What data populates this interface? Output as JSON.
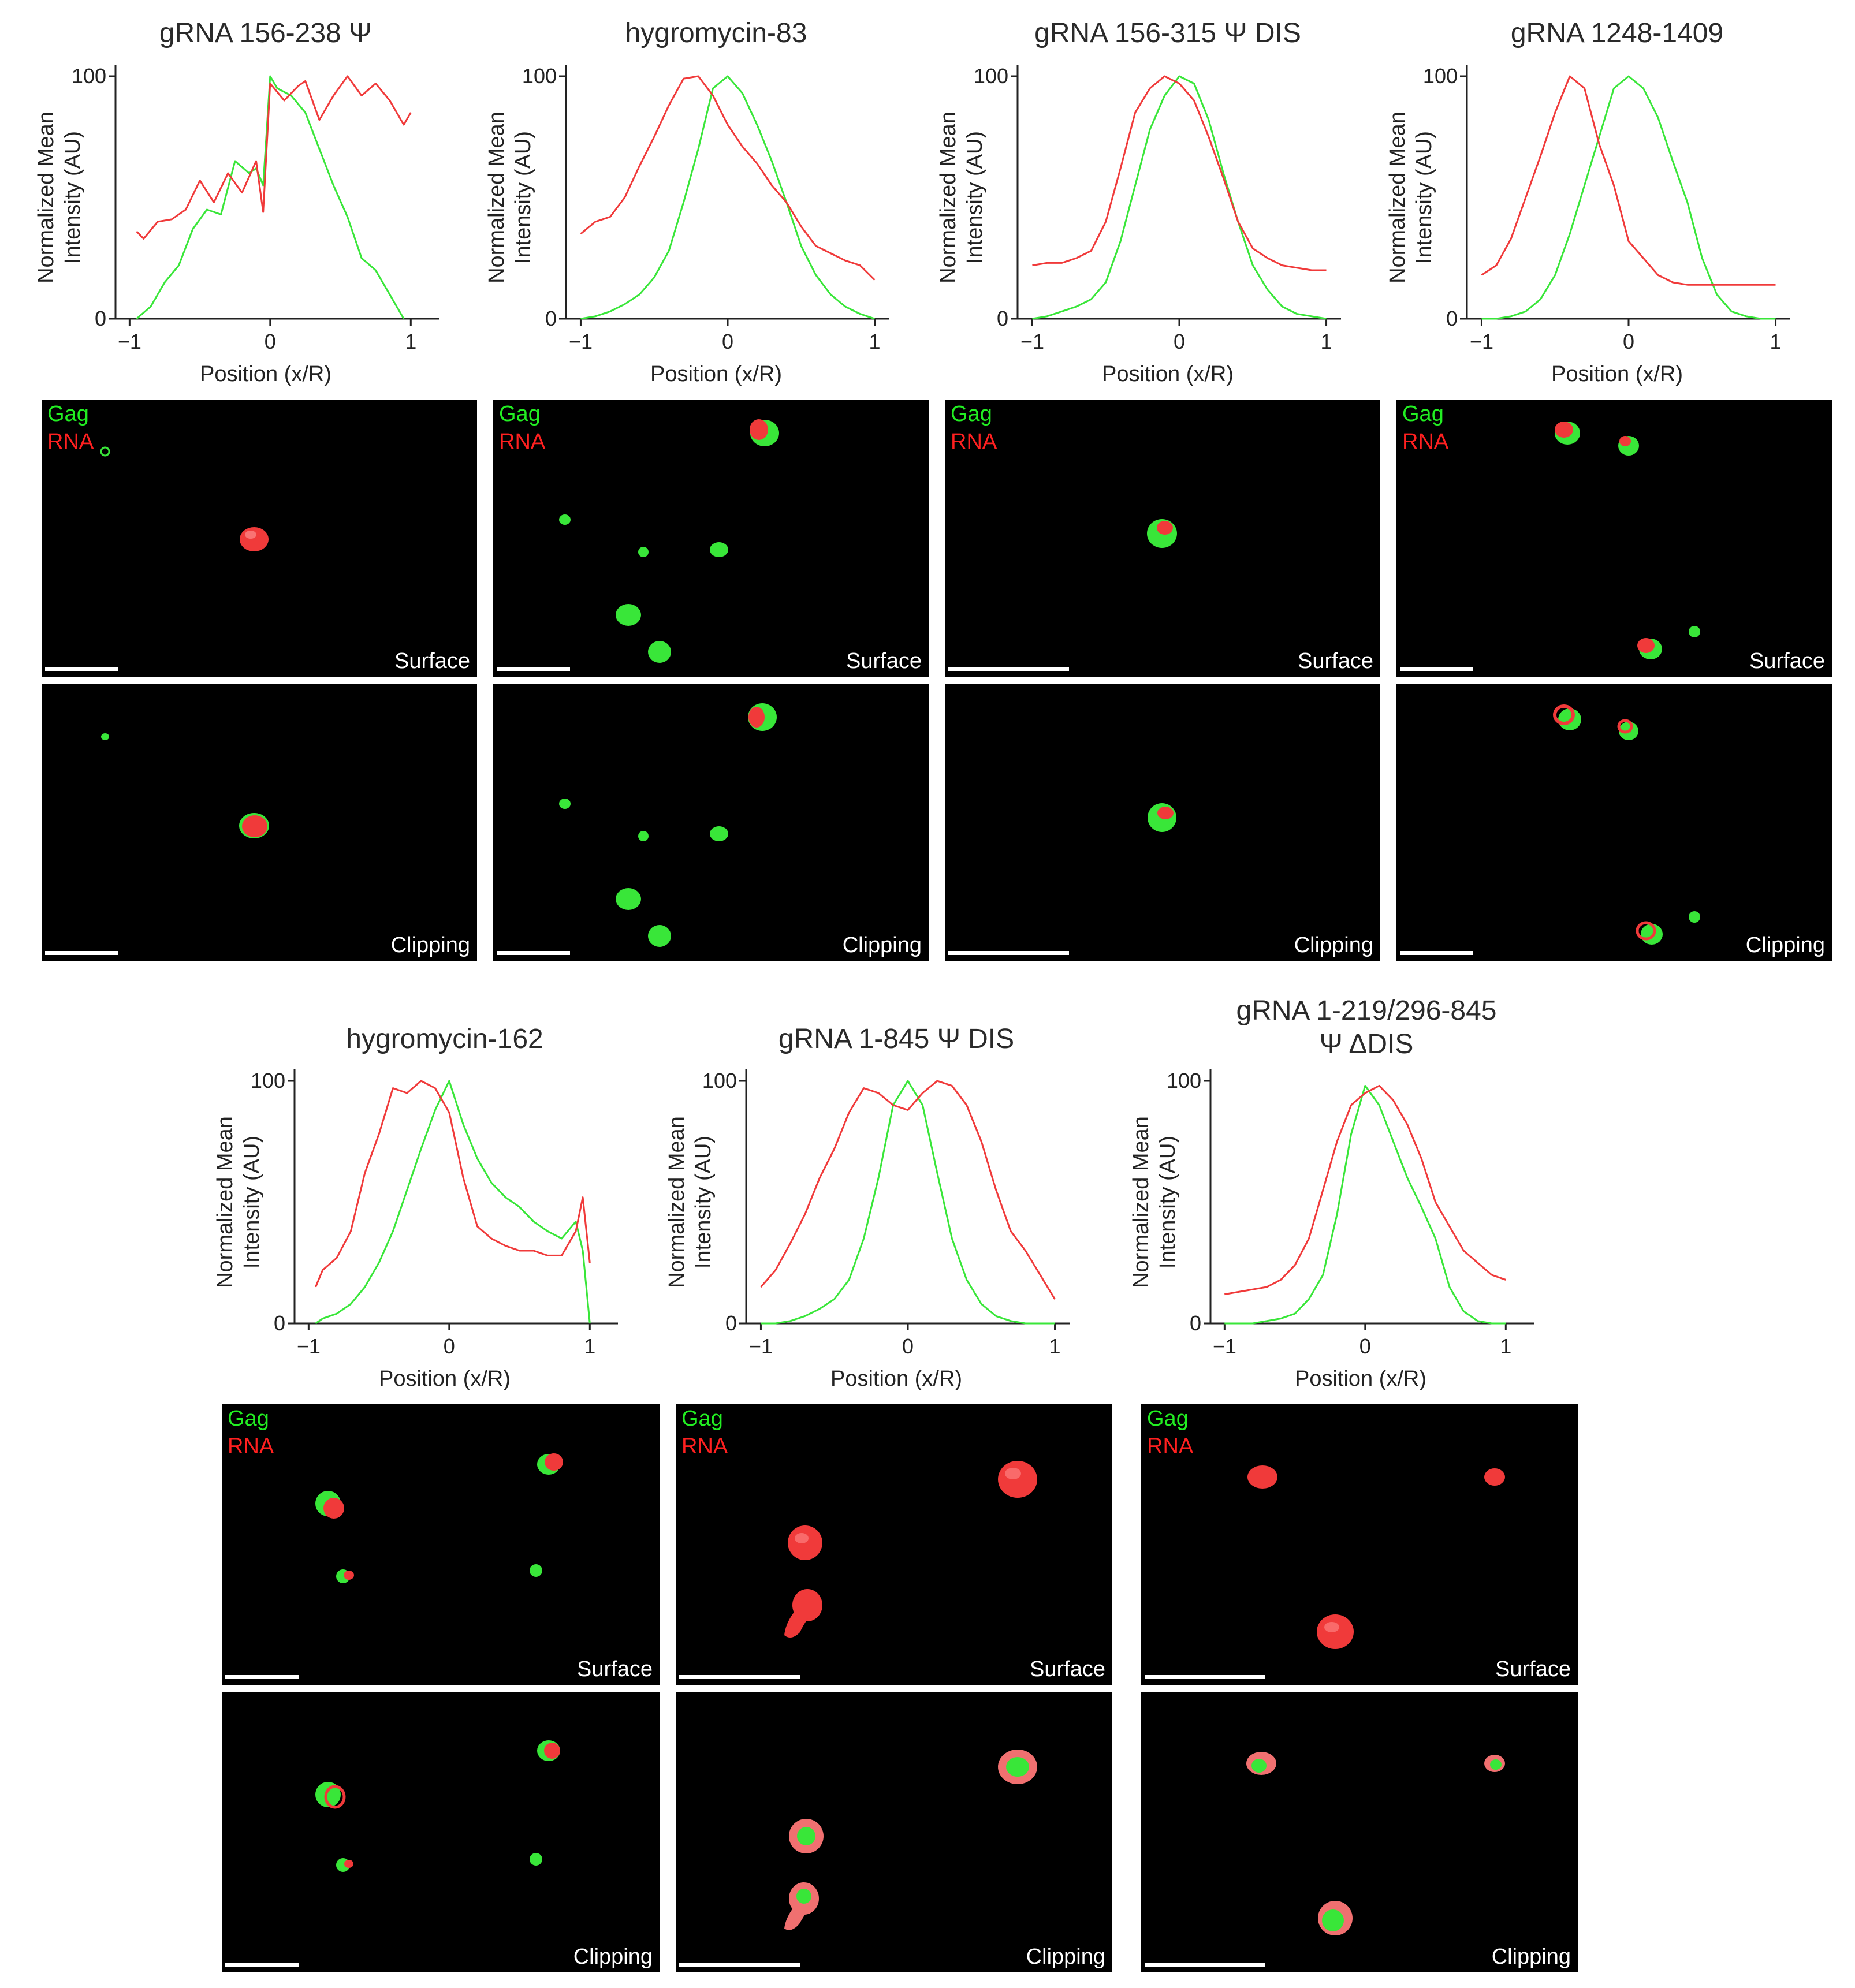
{
  "colors": {
    "gag": "#39e639",
    "rna": "#f03a3a",
    "background": "#000000",
    "axis": "#222222"
  },
  "common": {
    "ylabel_line1": "Normalized Mean",
    "ylabel_line2": "Intensity (AU)",
    "xlabel": "Position (x/R)",
    "yticks": [
      0,
      100
    ],
    "xticks": [
      -1,
      0,
      1
    ],
    "gag_label": "Gag",
    "rna_label": "RNA",
    "surface_label": "Surface",
    "clipping_label": "Clipping"
  },
  "panels": [
    {
      "title": "gRNA 156-238 Ψ"
    },
    {
      "title": "hygromycin-83"
    },
    {
      "title": "gRNA 156-315 Ψ DIS"
    },
    {
      "title": "gRNA 1248-1409"
    },
    {
      "title": "hygromycin-162"
    },
    {
      "title": "gRNA 1-845 Ψ DIS"
    },
    {
      "title_line1": "gRNA 1-219/296-845",
      "title_line2": "Ψ ΔDIS"
    }
  ],
  "chart_data": [
    {
      "type": "line",
      "title": "gRNA 156-238 Ψ",
      "xlabel": "Position (x/R)",
      "ylabel": "Normalized Mean Intensity (AU)",
      "xlim": [
        -1.1,
        1.2
      ],
      "ylim": [
        0,
        100
      ],
      "series": [
        {
          "name": "Gag",
          "x": [
            -0.95,
            -0.85,
            -0.75,
            -0.65,
            -0.55,
            -0.45,
            -0.35,
            -0.25,
            -0.15,
            -0.1,
            -0.05,
            0,
            0.05,
            0.15,
            0.25,
            0.35,
            0.45,
            0.55,
            0.65,
            0.75,
            0.85,
            0.95
          ],
          "y": [
            0,
            5,
            15,
            22,
            37,
            45,
            43,
            65,
            60,
            62,
            55,
            100,
            95,
            92,
            85,
            70,
            55,
            42,
            25,
            20,
            10,
            0
          ]
        },
        {
          "name": "RNA",
          "x": [
            -0.95,
            -0.9,
            -0.8,
            -0.7,
            -0.6,
            -0.5,
            -0.4,
            -0.3,
            -0.2,
            -0.1,
            -0.05,
            0,
            0.1,
            0.2,
            0.25,
            0.35,
            0.45,
            0.55,
            0.65,
            0.75,
            0.85,
            0.95,
            1.0
          ],
          "y": [
            36,
            33,
            40,
            41,
            45,
            57,
            48,
            60,
            52,
            65,
            44,
            97,
            90,
            96,
            98,
            82,
            92,
            100,
            92,
            97,
            90,
            80,
            85
          ]
        }
      ]
    },
    {
      "type": "line",
      "title": "hygromycin-83",
      "xlabel": "Position (x/R)",
      "ylabel": "Normalized Mean Intensity (AU)",
      "xlim": [
        -1.1,
        1.1
      ],
      "ylim": [
        0,
        100
      ],
      "series": [
        {
          "name": "Gag",
          "x": [
            -1,
            -0.9,
            -0.8,
            -0.7,
            -0.6,
            -0.5,
            -0.4,
            -0.3,
            -0.2,
            -0.1,
            0,
            0.1,
            0.2,
            0.3,
            0.4,
            0.5,
            0.6,
            0.7,
            0.8,
            0.9,
            1
          ],
          "y": [
            0,
            1,
            3,
            6,
            10,
            17,
            28,
            48,
            70,
            95,
            100,
            93,
            80,
            65,
            48,
            30,
            18,
            10,
            5,
            2,
            0
          ]
        },
        {
          "name": "RNA",
          "x": [
            -1,
            -0.9,
            -0.8,
            -0.7,
            -0.6,
            -0.5,
            -0.4,
            -0.3,
            -0.2,
            -0.1,
            0,
            0.1,
            0.2,
            0.3,
            0.4,
            0.5,
            0.6,
            0.7,
            0.8,
            0.9,
            1
          ],
          "y": [
            35,
            40,
            42,
            50,
            63,
            75,
            88,
            99,
            100,
            92,
            80,
            71,
            64,
            55,
            48,
            38,
            30,
            27,
            24,
            22,
            16
          ]
        }
      ]
    },
    {
      "type": "line",
      "title": "gRNA 156-315 Ψ DIS",
      "xlabel": "Position (x/R)",
      "ylabel": "Normalized Mean Intensity (AU)",
      "xlim": [
        -1.1,
        1.1
      ],
      "ylim": [
        0,
        100
      ],
      "series": [
        {
          "name": "Gag",
          "x": [
            -1,
            -0.9,
            -0.8,
            -0.7,
            -0.6,
            -0.5,
            -0.4,
            -0.3,
            -0.2,
            -0.1,
            0,
            0.1,
            0.2,
            0.3,
            0.4,
            0.5,
            0.6,
            0.7,
            0.8,
            0.9,
            1
          ],
          "y": [
            0,
            1,
            3,
            5,
            8,
            15,
            32,
            55,
            78,
            92,
            100,
            97,
            82,
            60,
            40,
            22,
            12,
            5,
            2,
            1,
            0
          ]
        },
        {
          "name": "RNA",
          "x": [
            -1,
            -0.9,
            -0.8,
            -0.7,
            -0.6,
            -0.5,
            -0.4,
            -0.3,
            -0.2,
            -0.1,
            0,
            0.1,
            0.2,
            0.3,
            0.4,
            0.5,
            0.6,
            0.7,
            0.8,
            0.9,
            1
          ],
          "y": [
            22,
            23,
            23,
            25,
            28,
            40,
            62,
            85,
            95,
            100,
            97,
            90,
            75,
            58,
            40,
            29,
            25,
            22,
            21,
            20,
            20
          ]
        }
      ]
    },
    {
      "type": "line",
      "title": "gRNA 1248-1409",
      "xlabel": "Position (x/R)",
      "ylabel": "Normalized Mean Intensity (AU)",
      "xlim": [
        -1.1,
        1.1
      ],
      "ylim": [
        0,
        100
      ],
      "series": [
        {
          "name": "Gag",
          "x": [
            -1,
            -0.9,
            -0.8,
            -0.7,
            -0.6,
            -0.5,
            -0.4,
            -0.3,
            -0.2,
            -0.1,
            0,
            0.1,
            0.2,
            0.3,
            0.4,
            0.5,
            0.6,
            0.7,
            0.8,
            0.9,
            1
          ],
          "y": [
            0,
            0,
            1,
            3,
            8,
            18,
            35,
            55,
            75,
            95,
            100,
            95,
            83,
            65,
            48,
            25,
            10,
            3,
            1,
            0,
            0
          ]
        },
        {
          "name": "RNA",
          "x": [
            -1,
            -0.9,
            -0.8,
            -0.7,
            -0.6,
            -0.5,
            -0.4,
            -0.3,
            -0.2,
            -0.1,
            0,
            0.1,
            0.2,
            0.3,
            0.4,
            0.5,
            0.6,
            0.7,
            0.8,
            0.9,
            1
          ],
          "y": [
            18,
            22,
            33,
            50,
            67,
            85,
            100,
            95,
            72,
            55,
            32,
            25,
            18,
            15,
            14,
            14,
            14,
            14,
            14,
            14,
            14
          ]
        }
      ]
    },
    {
      "type": "line",
      "title": "hygromycin-162",
      "xlabel": "Position (x/R)",
      "ylabel": "Normalized Mean Intensity (AU)",
      "xlim": [
        -1.1,
        1.2
      ],
      "ylim": [
        0,
        100
      ],
      "series": [
        {
          "name": "Gag",
          "x": [
            -0.95,
            -0.9,
            -0.8,
            -0.7,
            -0.6,
            -0.5,
            -0.4,
            -0.3,
            -0.2,
            -0.1,
            0,
            0.1,
            0.2,
            0.3,
            0.4,
            0.5,
            0.6,
            0.7,
            0.8,
            0.9,
            0.95,
            1.0
          ],
          "y": [
            0,
            2,
            4,
            8,
            15,
            25,
            38,
            55,
            72,
            88,
            100,
            82,
            68,
            58,
            52,
            48,
            42,
            38,
            35,
            42,
            30,
            0
          ]
        },
        {
          "name": "RNA",
          "x": [
            -0.95,
            -0.9,
            -0.8,
            -0.7,
            -0.6,
            -0.5,
            -0.4,
            -0.3,
            -0.2,
            -0.1,
            0,
            0.1,
            0.2,
            0.3,
            0.4,
            0.5,
            0.6,
            0.7,
            0.8,
            0.9,
            0.95,
            1.0
          ],
          "y": [
            15,
            22,
            27,
            38,
            62,
            78,
            97,
            95,
            100,
            97,
            87,
            60,
            40,
            35,
            32,
            30,
            30,
            28,
            28,
            38,
            52,
            25
          ]
        }
      ]
    },
    {
      "type": "line",
      "title": "gRNA 1-845 Ψ DIS",
      "xlabel": "Position (x/R)",
      "ylabel": "Normalized Mean Intensity (AU)",
      "xlim": [
        -1.1,
        1.1
      ],
      "ylim": [
        0,
        100
      ],
      "series": [
        {
          "name": "Gag",
          "x": [
            -1,
            -0.9,
            -0.8,
            -0.7,
            -0.6,
            -0.5,
            -0.4,
            -0.3,
            -0.2,
            -0.1,
            0,
            0.1,
            0.2,
            0.3,
            0.4,
            0.5,
            0.6,
            0.7,
            0.8,
            0.9,
            1
          ],
          "y": [
            0,
            0,
            1,
            3,
            6,
            10,
            18,
            35,
            60,
            90,
            100,
            90,
            62,
            35,
            18,
            8,
            3,
            1,
            0,
            0,
            0
          ]
        },
        {
          "name": "RNA",
          "x": [
            -1,
            -0.9,
            -0.8,
            -0.7,
            -0.6,
            -0.5,
            -0.4,
            -0.3,
            -0.2,
            -0.1,
            0,
            0.1,
            0.2,
            0.3,
            0.4,
            0.5,
            0.6,
            0.7,
            0.8,
            0.9,
            1
          ],
          "y": [
            15,
            22,
            33,
            45,
            60,
            72,
            87,
            97,
            95,
            90,
            88,
            95,
            100,
            98,
            90,
            75,
            55,
            38,
            30,
            20,
            10
          ]
        }
      ]
    },
    {
      "type": "line",
      "title": "gRNA 1-219/296-845 Ψ ΔDIS",
      "xlabel": "Position (x/R)",
      "ylabel": "Normalized Mean Intensity (AU)",
      "xlim": [
        -1.1,
        1.2
      ],
      "ylim": [
        0,
        100
      ],
      "series": [
        {
          "name": "Gag",
          "x": [
            -1,
            -0.9,
            -0.8,
            -0.7,
            -0.6,
            -0.5,
            -0.4,
            -0.3,
            -0.2,
            -0.1,
            0,
            0.1,
            0.2,
            0.3,
            0.4,
            0.5,
            0.6,
            0.7,
            0.8,
            0.9,
            1
          ],
          "y": [
            0,
            0,
            0,
            1,
            2,
            4,
            10,
            20,
            45,
            78,
            98,
            90,
            75,
            60,
            48,
            35,
            15,
            5,
            1,
            0,
            0
          ]
        },
        {
          "name": "RNA",
          "x": [
            -1,
            -0.9,
            -0.8,
            -0.7,
            -0.6,
            -0.5,
            -0.4,
            -0.3,
            -0.2,
            -0.1,
            0,
            0.1,
            0.2,
            0.3,
            0.4,
            0.5,
            0.6,
            0.7,
            0.8,
            0.9,
            1
          ],
          "y": [
            12,
            13,
            14,
            15,
            18,
            24,
            35,
            55,
            75,
            90,
            95,
            98,
            92,
            82,
            68,
            50,
            40,
            30,
            25,
            20,
            18
          ]
        }
      ]
    }
  ]
}
